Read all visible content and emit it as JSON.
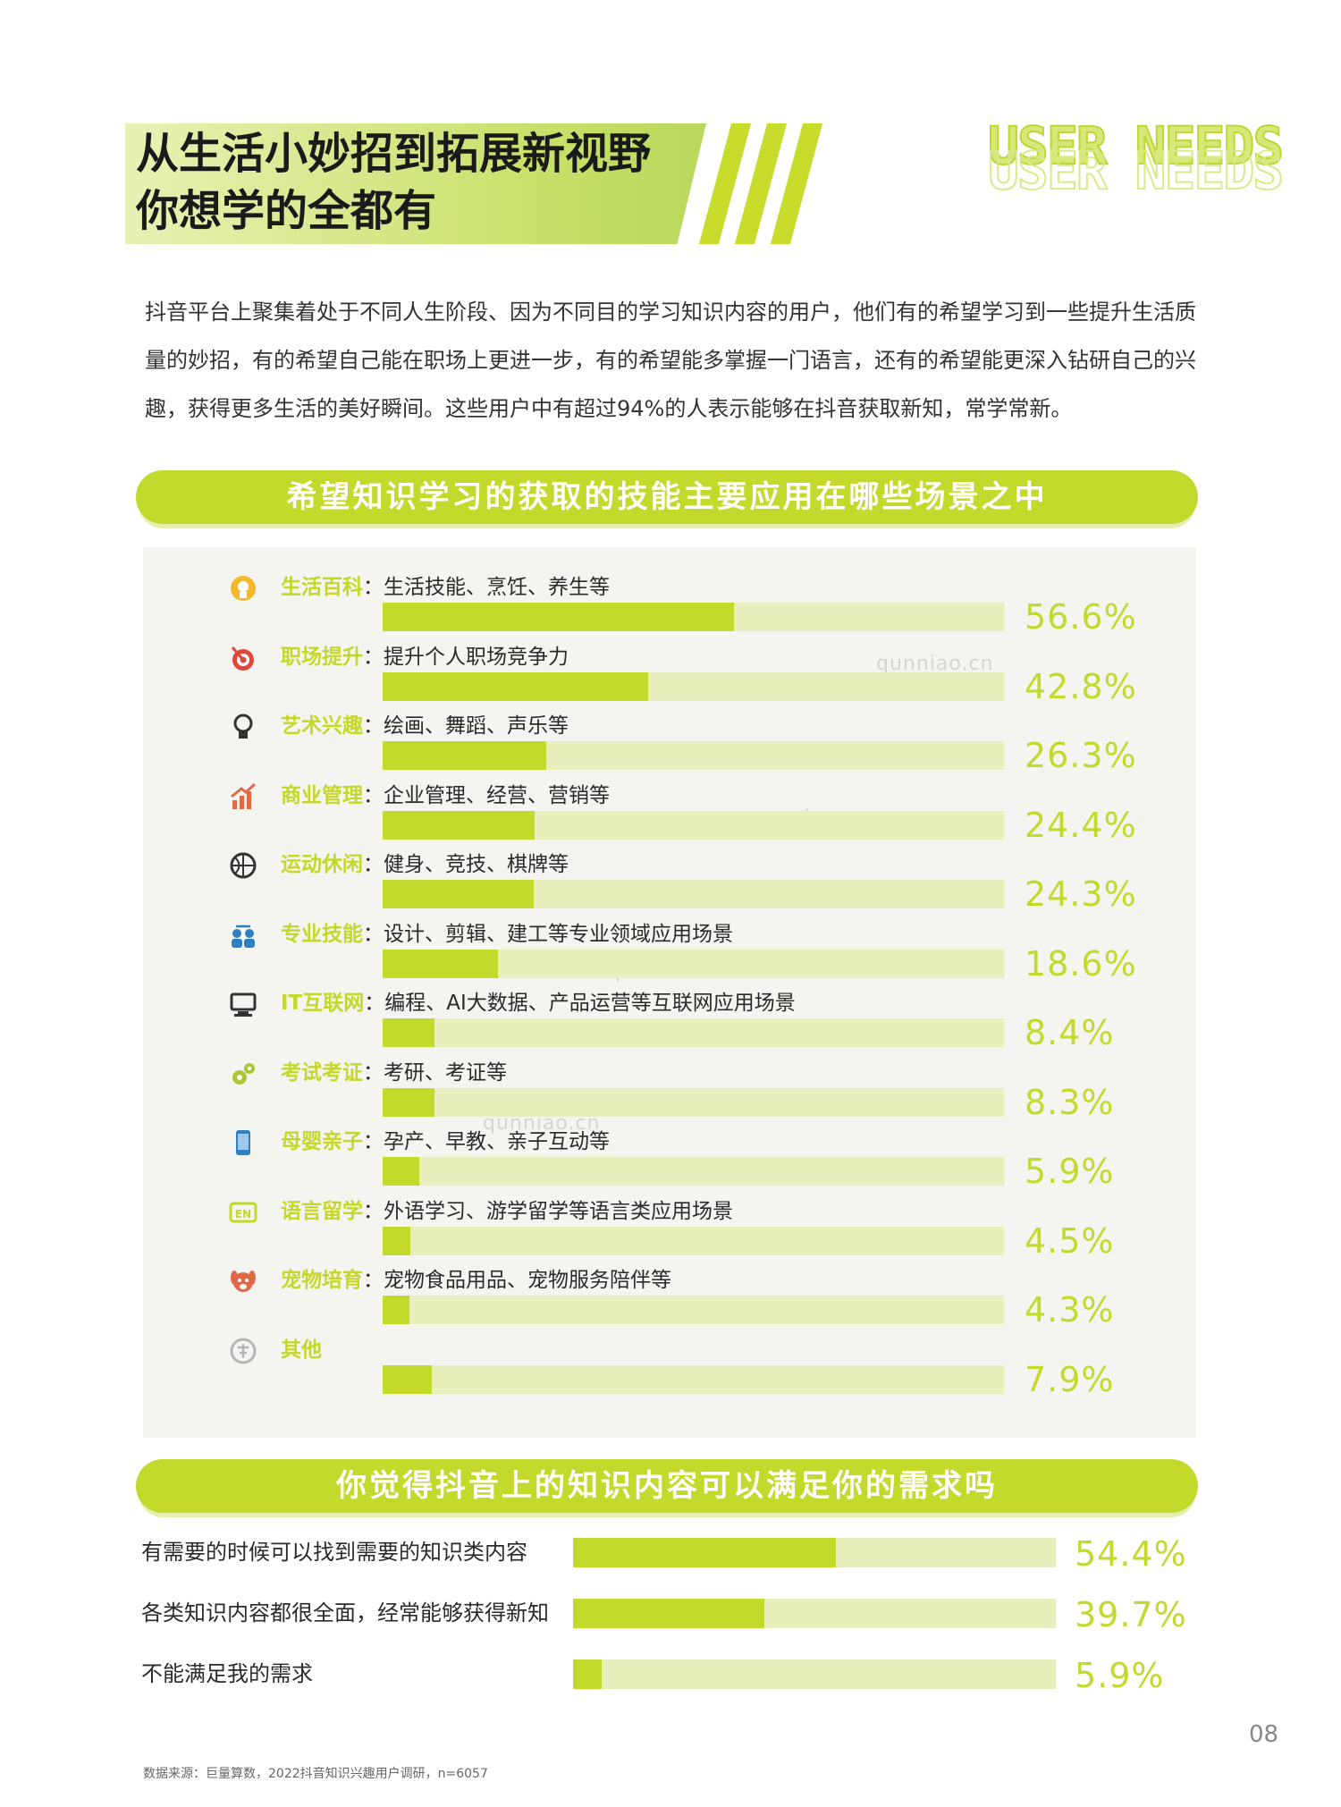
{
  "header": {
    "title_line1": "从生活小妙招到拓展新视野",
    "title_line2": "你想学的全都有",
    "logo_text": "USER NEEDS"
  },
  "intro": {
    "text": "抖音平台上聚集着处于不同人生阶段、因为不同目的学习知识内容的用户，他们有的希望学习到一些提升生活质量的妙招，有的希望自己能在职场上更进一步，有的希望能多掌握一门语言，还有的希望能更深入钻研自己的兴趣，获得更多生活的美好瞬间。这些用户中有超过94%的人表示能够在抖音获取新知，常学常新。"
  },
  "watermark": "qunniao.cn",
  "chart_data": [
    {
      "type": "bar",
      "title": "希望知识学习的获取的技能主要应用在哪些场景之中",
      "categories": [
        "生活百科",
        "职场提升",
        "艺术兴趣",
        "商业管理",
        "运动休闲",
        "专业技能",
        "IT互联网",
        "考试考证",
        "母婴亲子",
        "语言留学",
        "宠物培育",
        "其他"
      ],
      "descriptions": [
        "：生活技能、烹饪、养生等",
        "：提升个人职场竞争力",
        "：绘画、舞蹈、声乐等",
        "：企业管理、经营、营销等",
        "：健身、竞技、棋牌等",
        "：设计、剪辑、建工等专业领域应用场景",
        "：编程、AI大数据、产品运营等互联网应用场景",
        "：考研、考证等",
        "：孕产、早教、亲子互动等",
        "：外语学习、游学留学等语言类应用场景",
        "：宠物食品用品、宠物服务陪伴等",
        ""
      ],
      "icons": [
        "head-icon",
        "target-icon",
        "lightbulb-icon",
        "chart-growth-icon",
        "basketball-icon",
        "people-exchange-icon",
        "computer-icon",
        "gears-icon",
        "phone-icon",
        "en-badge-icon",
        "dog-icon",
        "other-icon"
      ],
      "values": [
        56.6,
        42.8,
        26.3,
        24.4,
        24.3,
        18.6,
        8.4,
        8.3,
        5.9,
        4.5,
        4.3,
        7.9
      ],
      "labels": [
        "56.6%",
        "42.8%",
        "26.3%",
        "24.4%",
        "24.3%",
        "18.6%",
        "8.4%",
        "8.3%",
        "5.9%",
        "4.5%",
        "4.3%",
        "7.9%"
      ],
      "xlim": [
        0,
        100
      ],
      "colors": {
        "fill": "#c3d92c",
        "track": "#e7efbd",
        "category_text": "#c5d82a"
      }
    },
    {
      "type": "bar",
      "title": "你觉得抖音上的知识内容可以满足你的需求吗",
      "categories": [
        "有需要的时候可以找到需要的知识类内容",
        "各类知识内容都很全面，经常能够获得新知",
        "不能满足我的需求"
      ],
      "values": [
        54.4,
        39.7,
        5.9
      ],
      "labels": [
        "54.4%",
        "39.7%",
        "5.9%"
      ],
      "xlim": [
        0,
        100
      ],
      "colors": {
        "fill": "#c3d92c",
        "track": "#e7efbd"
      }
    }
  ],
  "footer": {
    "page_number": "08",
    "source": "数据来源：巨量算数，2022抖音知识兴趣用户调研，n=6057"
  }
}
